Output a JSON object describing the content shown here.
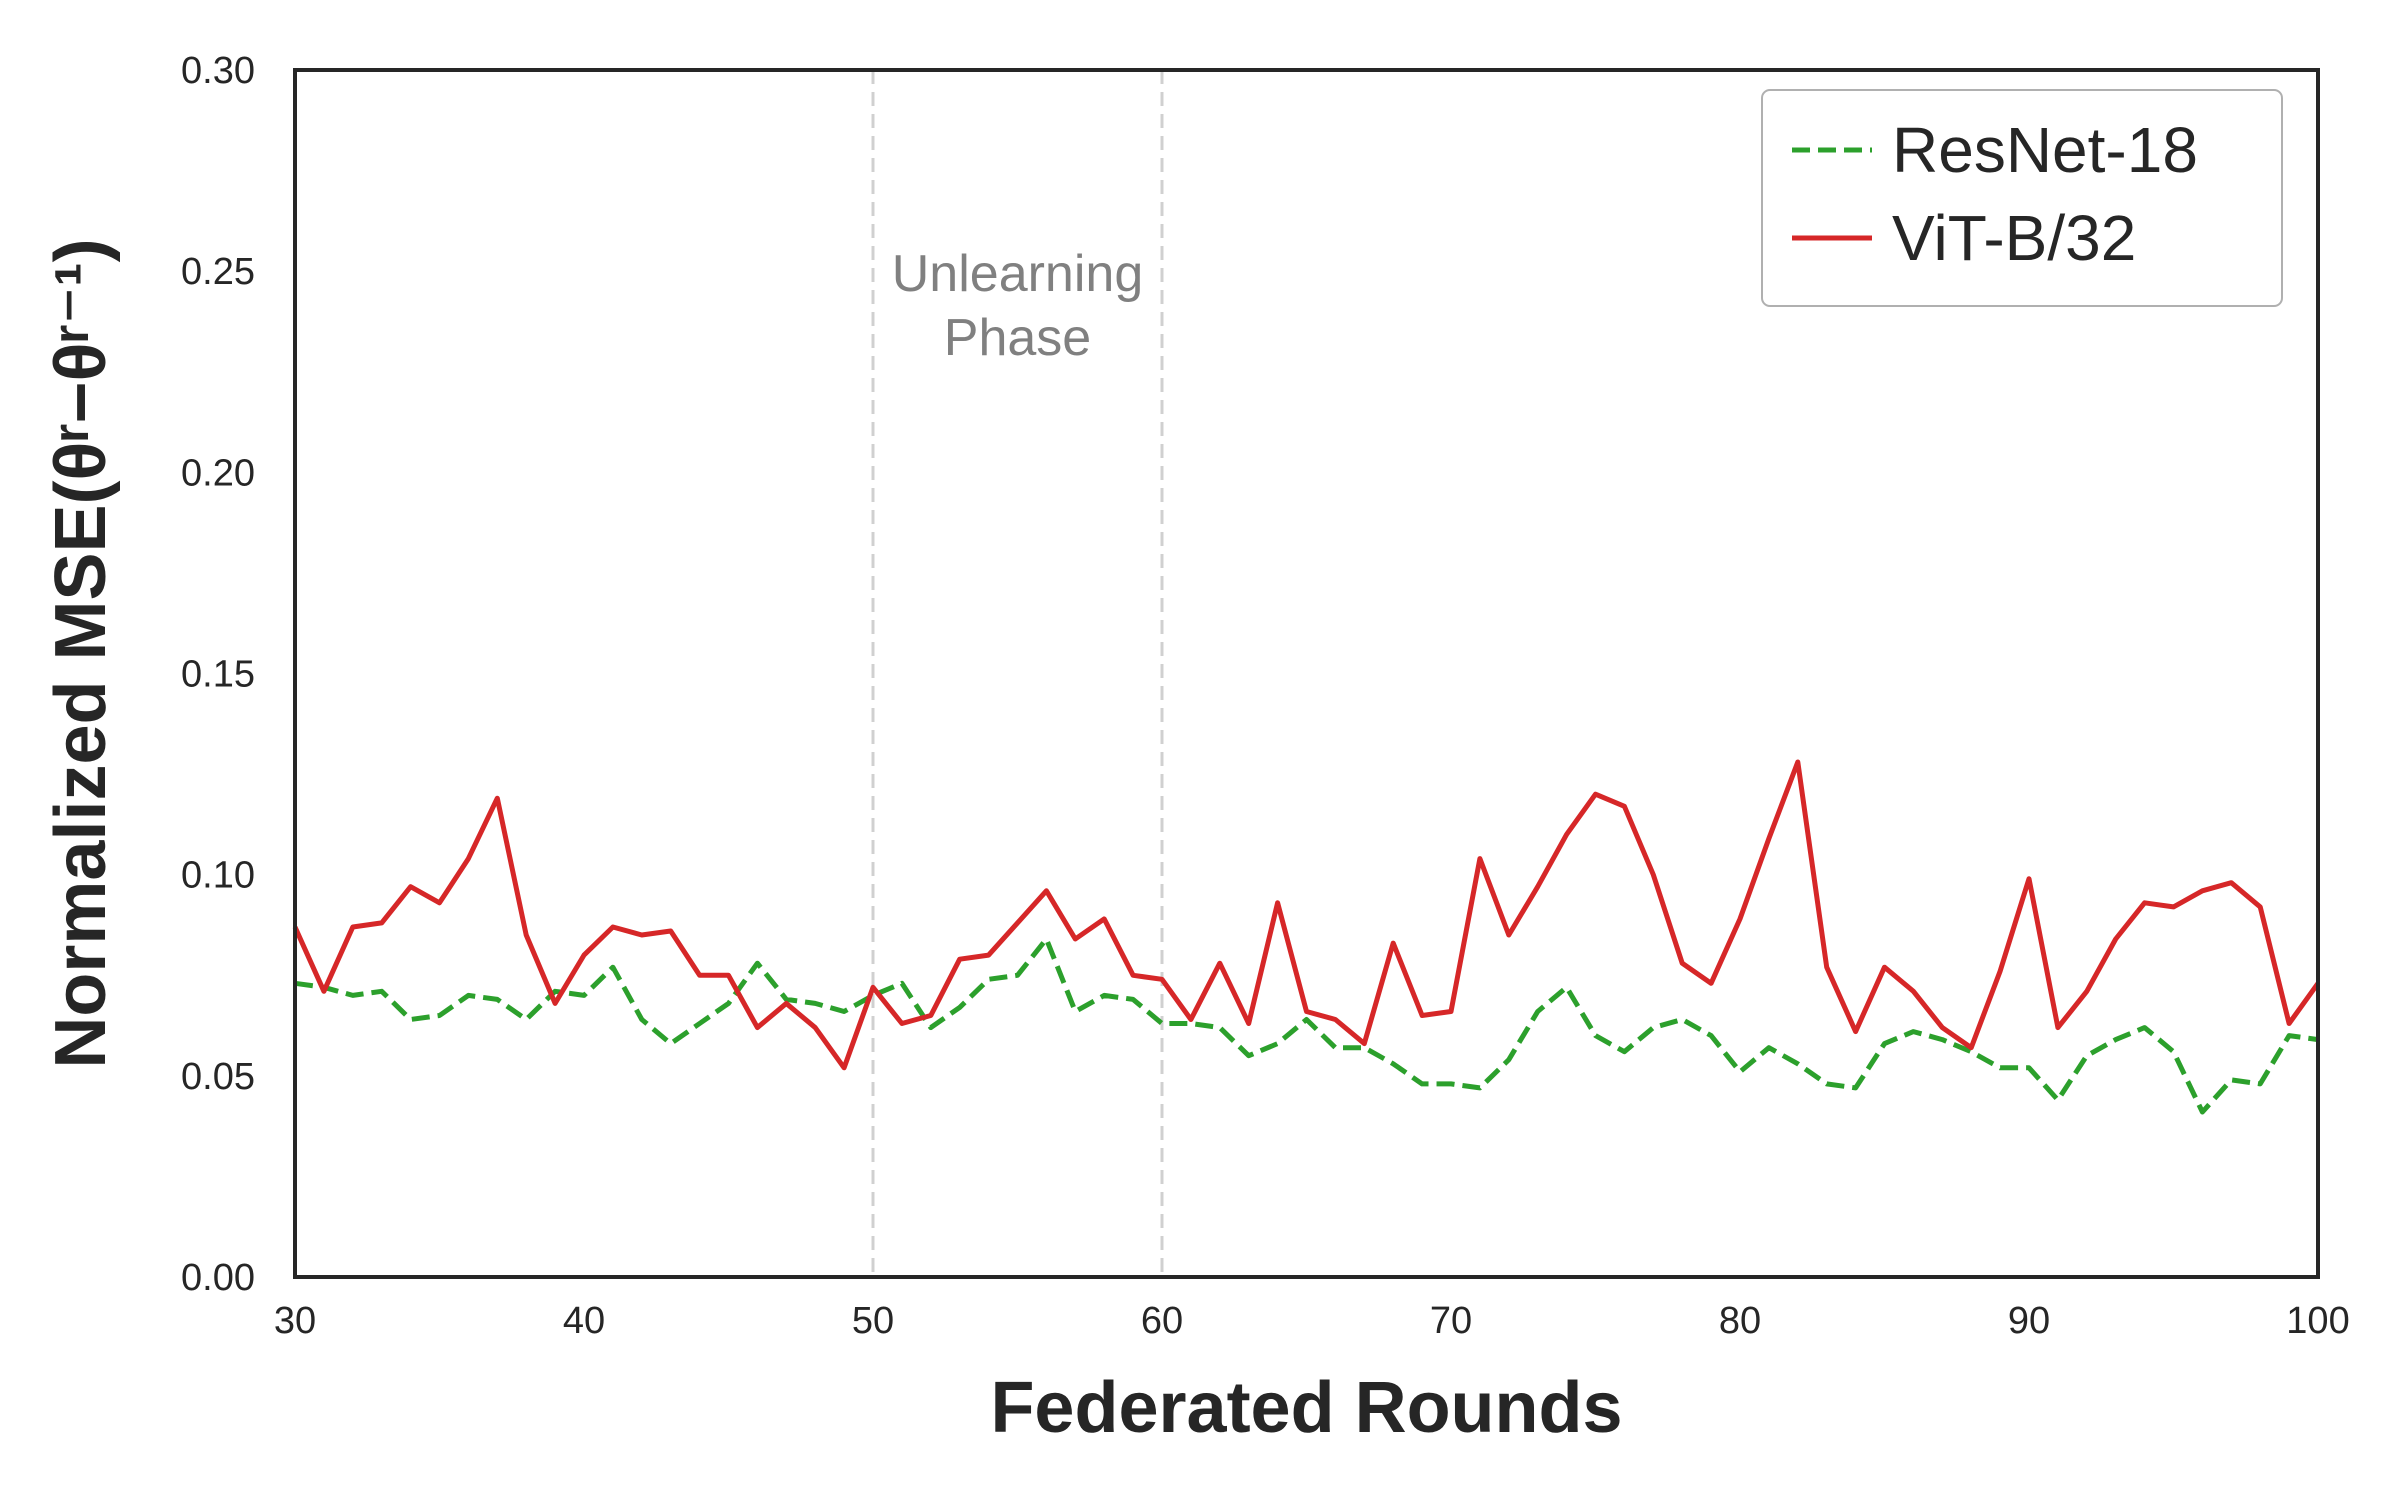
{
  "chart_data": {
    "type": "line",
    "xlabel": "Federated Rounds",
    "ylabel": "Normalized MSE(θʳ−θʳ⁻¹)",
    "xlim": [
      30,
      100
    ],
    "ylim": [
      0.0,
      0.3
    ],
    "xticks": [
      "30",
      "40",
      "50",
      "60",
      "70",
      "80",
      "90",
      "100"
    ],
    "yticks": [
      "0.00",
      "0.05",
      "0.10",
      "0.15",
      "0.20",
      "0.25",
      "0.30"
    ],
    "grid": false,
    "legend_position": "top-right",
    "vlines": [
      50,
      60
    ],
    "annotation": {
      "lines": [
        "Unlearning",
        "Phase"
      ],
      "x": 55,
      "y": 0.25
    },
    "x": [
      30,
      31,
      32,
      33,
      34,
      35,
      36,
      37,
      38,
      39,
      40,
      41,
      42,
      43,
      44,
      45,
      46,
      47,
      48,
      49,
      50,
      51,
      52,
      53,
      54,
      55,
      56,
      57,
      58,
      59,
      60,
      61,
      62,
      63,
      64,
      65,
      66,
      67,
      68,
      69,
      70,
      71,
      72,
      73,
      74,
      75,
      76,
      77,
      78,
      79,
      80,
      81,
      82,
      83,
      84,
      85,
      86,
      87,
      88,
      89,
      90,
      91,
      92,
      93,
      94,
      95,
      96,
      97,
      98,
      99,
      100
    ],
    "series": [
      {
        "name": "ResNet-18",
        "color": "#2ca02c",
        "style": "dashed",
        "values": [
          0.073,
          0.072,
          0.07,
          0.071,
          0.064,
          0.065,
          0.07,
          0.069,
          0.064,
          0.071,
          0.07,
          0.077,
          0.064,
          0.058,
          0.063,
          0.068,
          0.078,
          0.069,
          0.068,
          0.066,
          0.07,
          0.073,
          0.062,
          0.067,
          0.074,
          0.075,
          0.084,
          0.066,
          0.07,
          0.069,
          0.063,
          0.063,
          0.062,
          0.055,
          0.058,
          0.064,
          0.057,
          0.057,
          0.053,
          0.048,
          0.048,
          0.047,
          0.054,
          0.066,
          0.072,
          0.06,
          0.056,
          0.062,
          0.064,
          0.06,
          0.051,
          0.057,
          0.053,
          0.048,
          0.047,
          0.058,
          0.061,
          0.059,
          0.056,
          0.052,
          0.052,
          0.044,
          0.055,
          0.059,
          0.062,
          0.056,
          0.041,
          0.049,
          0.048,
          0.06,
          0.059
        ]
      },
      {
        "name": "ViT-B/32",
        "color": "#d62728",
        "style": "solid",
        "values": [
          0.087,
          0.071,
          0.087,
          0.088,
          0.097,
          0.093,
          0.104,
          0.119,
          0.085,
          0.068,
          0.08,
          0.087,
          0.085,
          0.086,
          0.075,
          0.075,
          0.062,
          0.068,
          0.062,
          0.052,
          0.072,
          0.063,
          0.065,
          0.079,
          0.08,
          0.088,
          0.096,
          0.084,
          0.089,
          0.075,
          0.074,
          0.064,
          0.078,
          0.063,
          0.093,
          0.066,
          0.064,
          0.058,
          0.083,
          0.065,
          0.066,
          0.104,
          0.085,
          0.097,
          0.11,
          0.12,
          0.117,
          0.1,
          0.078,
          0.073,
          0.089,
          0.109,
          0.128,
          0.077,
          0.061,
          0.077,
          0.071,
          0.062,
          0.057,
          0.076,
          0.099,
          0.062,
          0.071,
          0.084,
          0.093,
          0.092,
          0.096,
          0.098,
          0.092,
          0.063,
          0.073
        ]
      }
    ]
  }
}
